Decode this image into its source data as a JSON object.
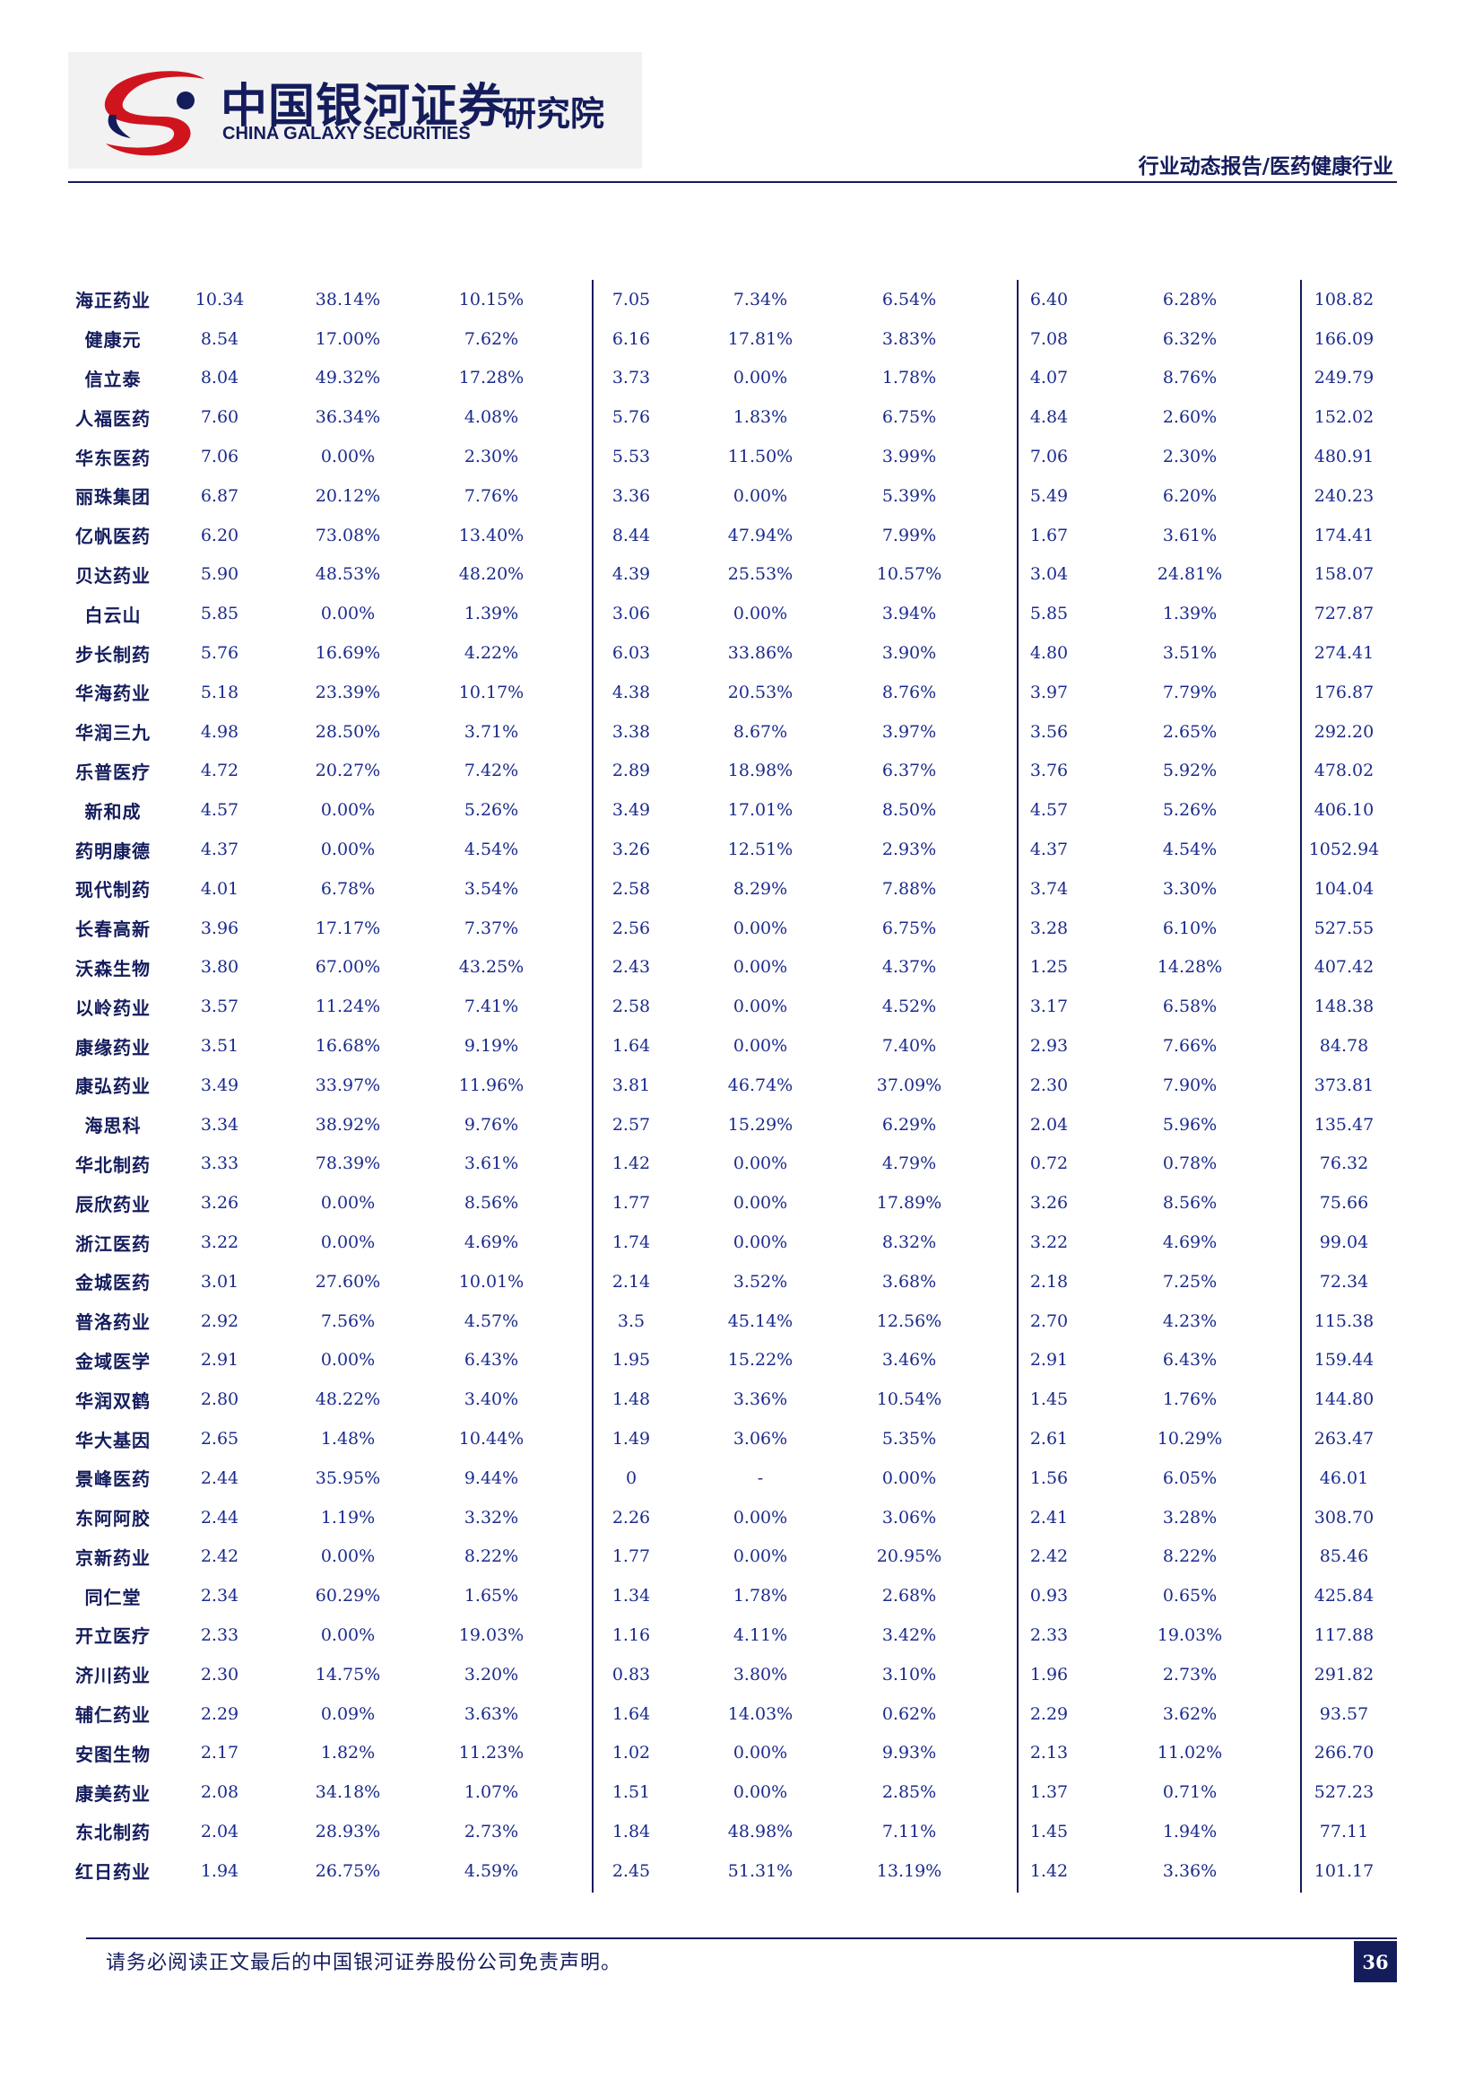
{
  "header": {
    "logo_cn": "中国银河证券",
    "logo_en": "CHINA GALAXY SECURITIES",
    "logo_dept": "研究院",
    "report_type": "行业动态报告/医药健康行业"
  },
  "colors": {
    "navy": "#141c5c",
    "red": "#d0141e",
    "text": "#1a2a8c"
  },
  "table": {
    "rows": [
      [
        "海正药业",
        "10.34",
        "38.14%",
        "10.15%",
        "7.05",
        "7.34%",
        "6.54%",
        "6.40",
        "6.28%",
        "108.82"
      ],
      [
        "健康元",
        "8.54",
        "17.00%",
        "7.62%",
        "6.16",
        "17.81%",
        "3.83%",
        "7.08",
        "6.32%",
        "166.09"
      ],
      [
        "信立泰",
        "8.04",
        "49.32%",
        "17.28%",
        "3.73",
        "0.00%",
        "1.78%",
        "4.07",
        "8.76%",
        "249.79"
      ],
      [
        "人福医药",
        "7.60",
        "36.34%",
        "4.08%",
        "5.76",
        "1.83%",
        "6.75%",
        "4.84",
        "2.60%",
        "152.02"
      ],
      [
        "华东医药",
        "7.06",
        "0.00%",
        "2.30%",
        "5.53",
        "11.50%",
        "3.99%",
        "7.06",
        "2.30%",
        "480.91"
      ],
      [
        "丽珠集团",
        "6.87",
        "20.12%",
        "7.76%",
        "3.36",
        "0.00%",
        "5.39%",
        "5.49",
        "6.20%",
        "240.23"
      ],
      [
        "亿帆医药",
        "6.20",
        "73.08%",
        "13.40%",
        "8.44",
        "47.94%",
        "7.99%",
        "1.67",
        "3.61%",
        "174.41"
      ],
      [
        "贝达药业",
        "5.90",
        "48.53%",
        "48.20%",
        "4.39",
        "25.53%",
        "10.57%",
        "3.04",
        "24.81%",
        "158.07"
      ],
      [
        "白云山",
        "5.85",
        "0.00%",
        "1.39%",
        "3.06",
        "0.00%",
        "3.94%",
        "5.85",
        "1.39%",
        "727.87"
      ],
      [
        "步长制药",
        "5.76",
        "16.69%",
        "4.22%",
        "6.03",
        "33.86%",
        "3.90%",
        "4.80",
        "3.51%",
        "274.41"
      ],
      [
        "华海药业",
        "5.18",
        "23.39%",
        "10.17%",
        "4.38",
        "20.53%",
        "8.76%",
        "3.97",
        "7.79%",
        "176.87"
      ],
      [
        "华润三九",
        "4.98",
        "28.50%",
        "3.71%",
        "3.38",
        "8.67%",
        "3.97%",
        "3.56",
        "2.65%",
        "292.20"
      ],
      [
        "乐普医疗",
        "4.72",
        "20.27%",
        "7.42%",
        "2.89",
        "18.98%",
        "6.37%",
        "3.76",
        "5.92%",
        "478.02"
      ],
      [
        "新和成",
        "4.57",
        "0.00%",
        "5.26%",
        "3.49",
        "17.01%",
        "8.50%",
        "4.57",
        "5.26%",
        "406.10"
      ],
      [
        "药明康德",
        "4.37",
        "0.00%",
        "4.54%",
        "3.26",
        "12.51%",
        "2.93%",
        "4.37",
        "4.54%",
        "1052.94"
      ],
      [
        "现代制药",
        "4.01",
        "6.78%",
        "3.54%",
        "2.58",
        "8.29%",
        "7.88%",
        "3.74",
        "3.30%",
        "104.04"
      ],
      [
        "长春高新",
        "3.96",
        "17.17%",
        "7.37%",
        "2.56",
        "0.00%",
        "6.75%",
        "3.28",
        "6.10%",
        "527.55"
      ],
      [
        "沃森生物",
        "3.80",
        "67.00%",
        "43.25%",
        "2.43",
        "0.00%",
        "4.37%",
        "1.25",
        "14.28%",
        "407.42"
      ],
      [
        "以岭药业",
        "3.57",
        "11.24%",
        "7.41%",
        "2.58",
        "0.00%",
        "4.52%",
        "3.17",
        "6.58%",
        "148.38"
      ],
      [
        "康缘药业",
        "3.51",
        "16.68%",
        "9.19%",
        "1.64",
        "0.00%",
        "7.40%",
        "2.93",
        "7.66%",
        "84.78"
      ],
      [
        "康弘药业",
        "3.49",
        "33.97%",
        "11.96%",
        "3.81",
        "46.74%",
        "37.09%",
        "2.30",
        "7.90%",
        "373.81"
      ],
      [
        "海思科",
        "3.34",
        "38.92%",
        "9.76%",
        "2.57",
        "15.29%",
        "6.29%",
        "2.04",
        "5.96%",
        "135.47"
      ],
      [
        "华北制药",
        "3.33",
        "78.39%",
        "3.61%",
        "1.42",
        "0.00%",
        "4.79%",
        "0.72",
        "0.78%",
        "76.32"
      ],
      [
        "辰欣药业",
        "3.26",
        "0.00%",
        "8.56%",
        "1.77",
        "0.00%",
        "17.89%",
        "3.26",
        "8.56%",
        "75.66"
      ],
      [
        "浙江医药",
        "3.22",
        "0.00%",
        "4.69%",
        "1.74",
        "0.00%",
        "8.32%",
        "3.22",
        "4.69%",
        "99.04"
      ],
      [
        "金城医药",
        "3.01",
        "27.60%",
        "10.01%",
        "2.14",
        "3.52%",
        "3.68%",
        "2.18",
        "7.25%",
        "72.34"
      ],
      [
        "普洛药业",
        "2.92",
        "7.56%",
        "4.57%",
        "3.5",
        "45.14%",
        "12.56%",
        "2.70",
        "4.23%",
        "115.38"
      ],
      [
        "金域医学",
        "2.91",
        "0.00%",
        "6.43%",
        "1.95",
        "15.22%",
        "3.46%",
        "2.91",
        "6.43%",
        "159.44"
      ],
      [
        "华润双鹤",
        "2.80",
        "48.22%",
        "3.40%",
        "1.48",
        "3.36%",
        "10.54%",
        "1.45",
        "1.76%",
        "144.80"
      ],
      [
        "华大基因",
        "2.65",
        "1.48%",
        "10.44%",
        "1.49",
        "3.06%",
        "5.35%",
        "2.61",
        "10.29%",
        "263.47"
      ],
      [
        "景峰医药",
        "2.44",
        "35.95%",
        "9.44%",
        "0",
        "-",
        "0.00%",
        "1.56",
        "6.05%",
        "46.01"
      ],
      [
        "东阿阿胶",
        "2.44",
        "1.19%",
        "3.32%",
        "2.26",
        "0.00%",
        "3.06%",
        "2.41",
        "3.28%",
        "308.70"
      ],
      [
        "京新药业",
        "2.42",
        "0.00%",
        "8.22%",
        "1.77",
        "0.00%",
        "20.95%",
        "2.42",
        "8.22%",
        "85.46"
      ],
      [
        "同仁堂",
        "2.34",
        "60.29%",
        "1.65%",
        "1.34",
        "1.78%",
        "2.68%",
        "0.93",
        "0.65%",
        "425.84"
      ],
      [
        "开立医疗",
        "2.33",
        "0.00%",
        "19.03%",
        "1.16",
        "4.11%",
        "3.42%",
        "2.33",
        "19.03%",
        "117.88"
      ],
      [
        "济川药业",
        "2.30",
        "14.75%",
        "3.20%",
        "0.83",
        "3.80%",
        "3.10%",
        "1.96",
        "2.73%",
        "291.82"
      ],
      [
        "辅仁药业",
        "2.29",
        "0.09%",
        "3.63%",
        "1.64",
        "14.03%",
        "0.62%",
        "2.29",
        "3.62%",
        "93.57"
      ],
      [
        "安图生物",
        "2.17",
        "1.82%",
        "11.23%",
        "1.02",
        "0.00%",
        "9.93%",
        "2.13",
        "11.02%",
        "266.70"
      ],
      [
        "康美药业",
        "2.08",
        "34.18%",
        "1.07%",
        "1.51",
        "0.00%",
        "2.85%",
        "1.37",
        "0.71%",
        "527.23"
      ],
      [
        "东北制药",
        "2.04",
        "28.93%",
        "2.73%",
        "1.84",
        "48.98%",
        "7.11%",
        "1.45",
        "1.94%",
        "77.11"
      ],
      [
        "红日药业",
        "1.94",
        "26.75%",
        "4.59%",
        "2.45",
        "51.31%",
        "13.19%",
        "1.42",
        "3.36%",
        "101.17"
      ]
    ]
  },
  "footer": {
    "disclaimer": "请务必阅读正文最后的中国银河证券股份公司免责声明。",
    "page_number": "36"
  }
}
